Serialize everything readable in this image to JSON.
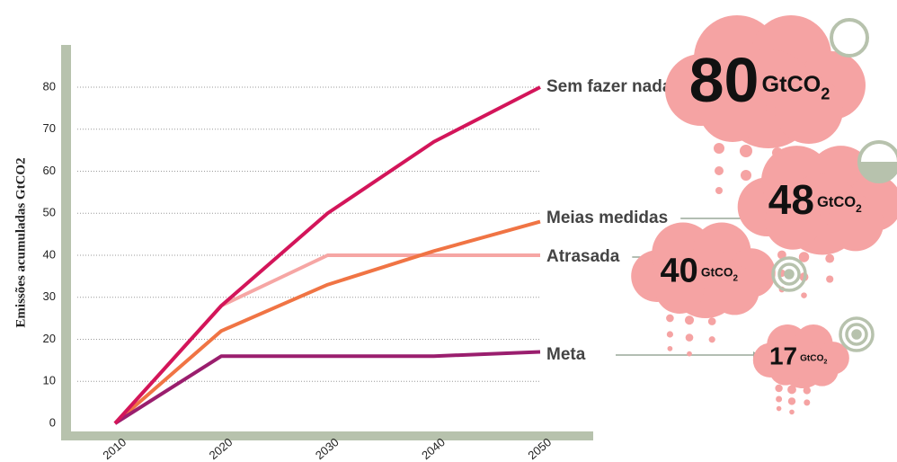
{
  "chart_data": {
    "type": "line",
    "y_label": "Emissões acumuladas  GtCO2",
    "categories": [
      "2010",
      "2020",
      "2030",
      "2040",
      "2050"
    ],
    "series": [
      {
        "name": "Sem fazer nada",
        "color": "#d3155a",
        "values": [
          0,
          28,
          50,
          67,
          80
        ]
      },
      {
        "name": "Meias medidas",
        "color": "#f07444",
        "values": [
          0,
          22,
          33,
          41,
          48
        ]
      },
      {
        "name": "Atrasada",
        "color": "#f6a6a4",
        "values": [
          0,
          28,
          40,
          40,
          40
        ]
      },
      {
        "name": "Meta",
        "color": "#9a1e6e",
        "values": [
          0,
          16,
          16,
          16,
          17
        ]
      }
    ],
    "annotations": [
      {
        "number": "80",
        "unit": "GtCO",
        "sub": "2"
      },
      {
        "number": "48",
        "unit": "GtCO",
        "sub": "2"
      },
      {
        "number": "40",
        "unit": "GtCO",
        "sub": "2"
      },
      {
        "number": "17",
        "unit": "GtCO",
        "sub": "2"
      }
    ],
    "ylim": [
      -3,
      90
    ],
    "yticks": [
      0,
      10,
      20,
      30,
      40,
      50,
      60,
      70,
      80
    ],
    "grid": true
  }
}
